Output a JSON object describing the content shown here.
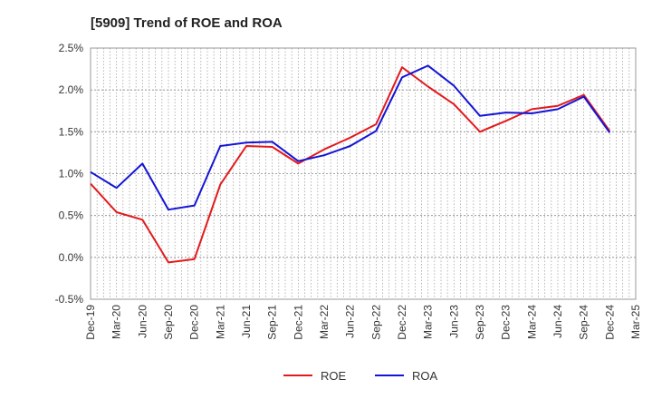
{
  "chart_data": {
    "type": "line",
    "title": "[5909]  Trend of ROE and ROA",
    "xlabel": "",
    "ylabel": "",
    "ylim": [
      -0.5,
      2.5
    ],
    "y_ticks": [
      -0.5,
      0.0,
      0.5,
      1.0,
      1.5,
      2.0,
      2.5
    ],
    "y_tick_labels": [
      "-0.5%",
      "0.0%",
      "0.5%",
      "1.0%",
      "1.5%",
      "2.0%",
      "2.5%"
    ],
    "y_unit": "%",
    "categories": [
      "Dec-19",
      "Mar-20",
      "Jun-20",
      "Sep-20",
      "Dec-20",
      "Mar-21",
      "Jun-21",
      "Sep-21",
      "Dec-21",
      "Mar-22",
      "Jun-22",
      "Sep-22",
      "Dec-22",
      "Mar-23",
      "Jun-23",
      "Sep-23",
      "Dec-23",
      "Mar-24",
      "Jun-24",
      "Sep-24",
      "Dec-24",
      "Mar-25"
    ],
    "grid": true,
    "legend_position": "bottom",
    "series": [
      {
        "name": "ROE",
        "color": "#e31a1c",
        "values": [
          0.88,
          0.54,
          0.45,
          -0.06,
          -0.02,
          0.87,
          1.33,
          1.32,
          1.12,
          1.29,
          1.43,
          1.59,
          2.27,
          2.04,
          1.83,
          1.5,
          1.63,
          1.77,
          1.81,
          1.94,
          1.51,
          null
        ]
      },
      {
        "name": "ROA",
        "color": "#1414d6",
        "values": [
          1.02,
          0.83,
          1.12,
          0.57,
          0.62,
          1.33,
          1.37,
          1.38,
          1.15,
          1.22,
          1.33,
          1.51,
          2.15,
          2.29,
          2.05,
          1.69,
          1.73,
          1.72,
          1.77,
          1.92,
          1.49,
          null
        ]
      }
    ]
  }
}
